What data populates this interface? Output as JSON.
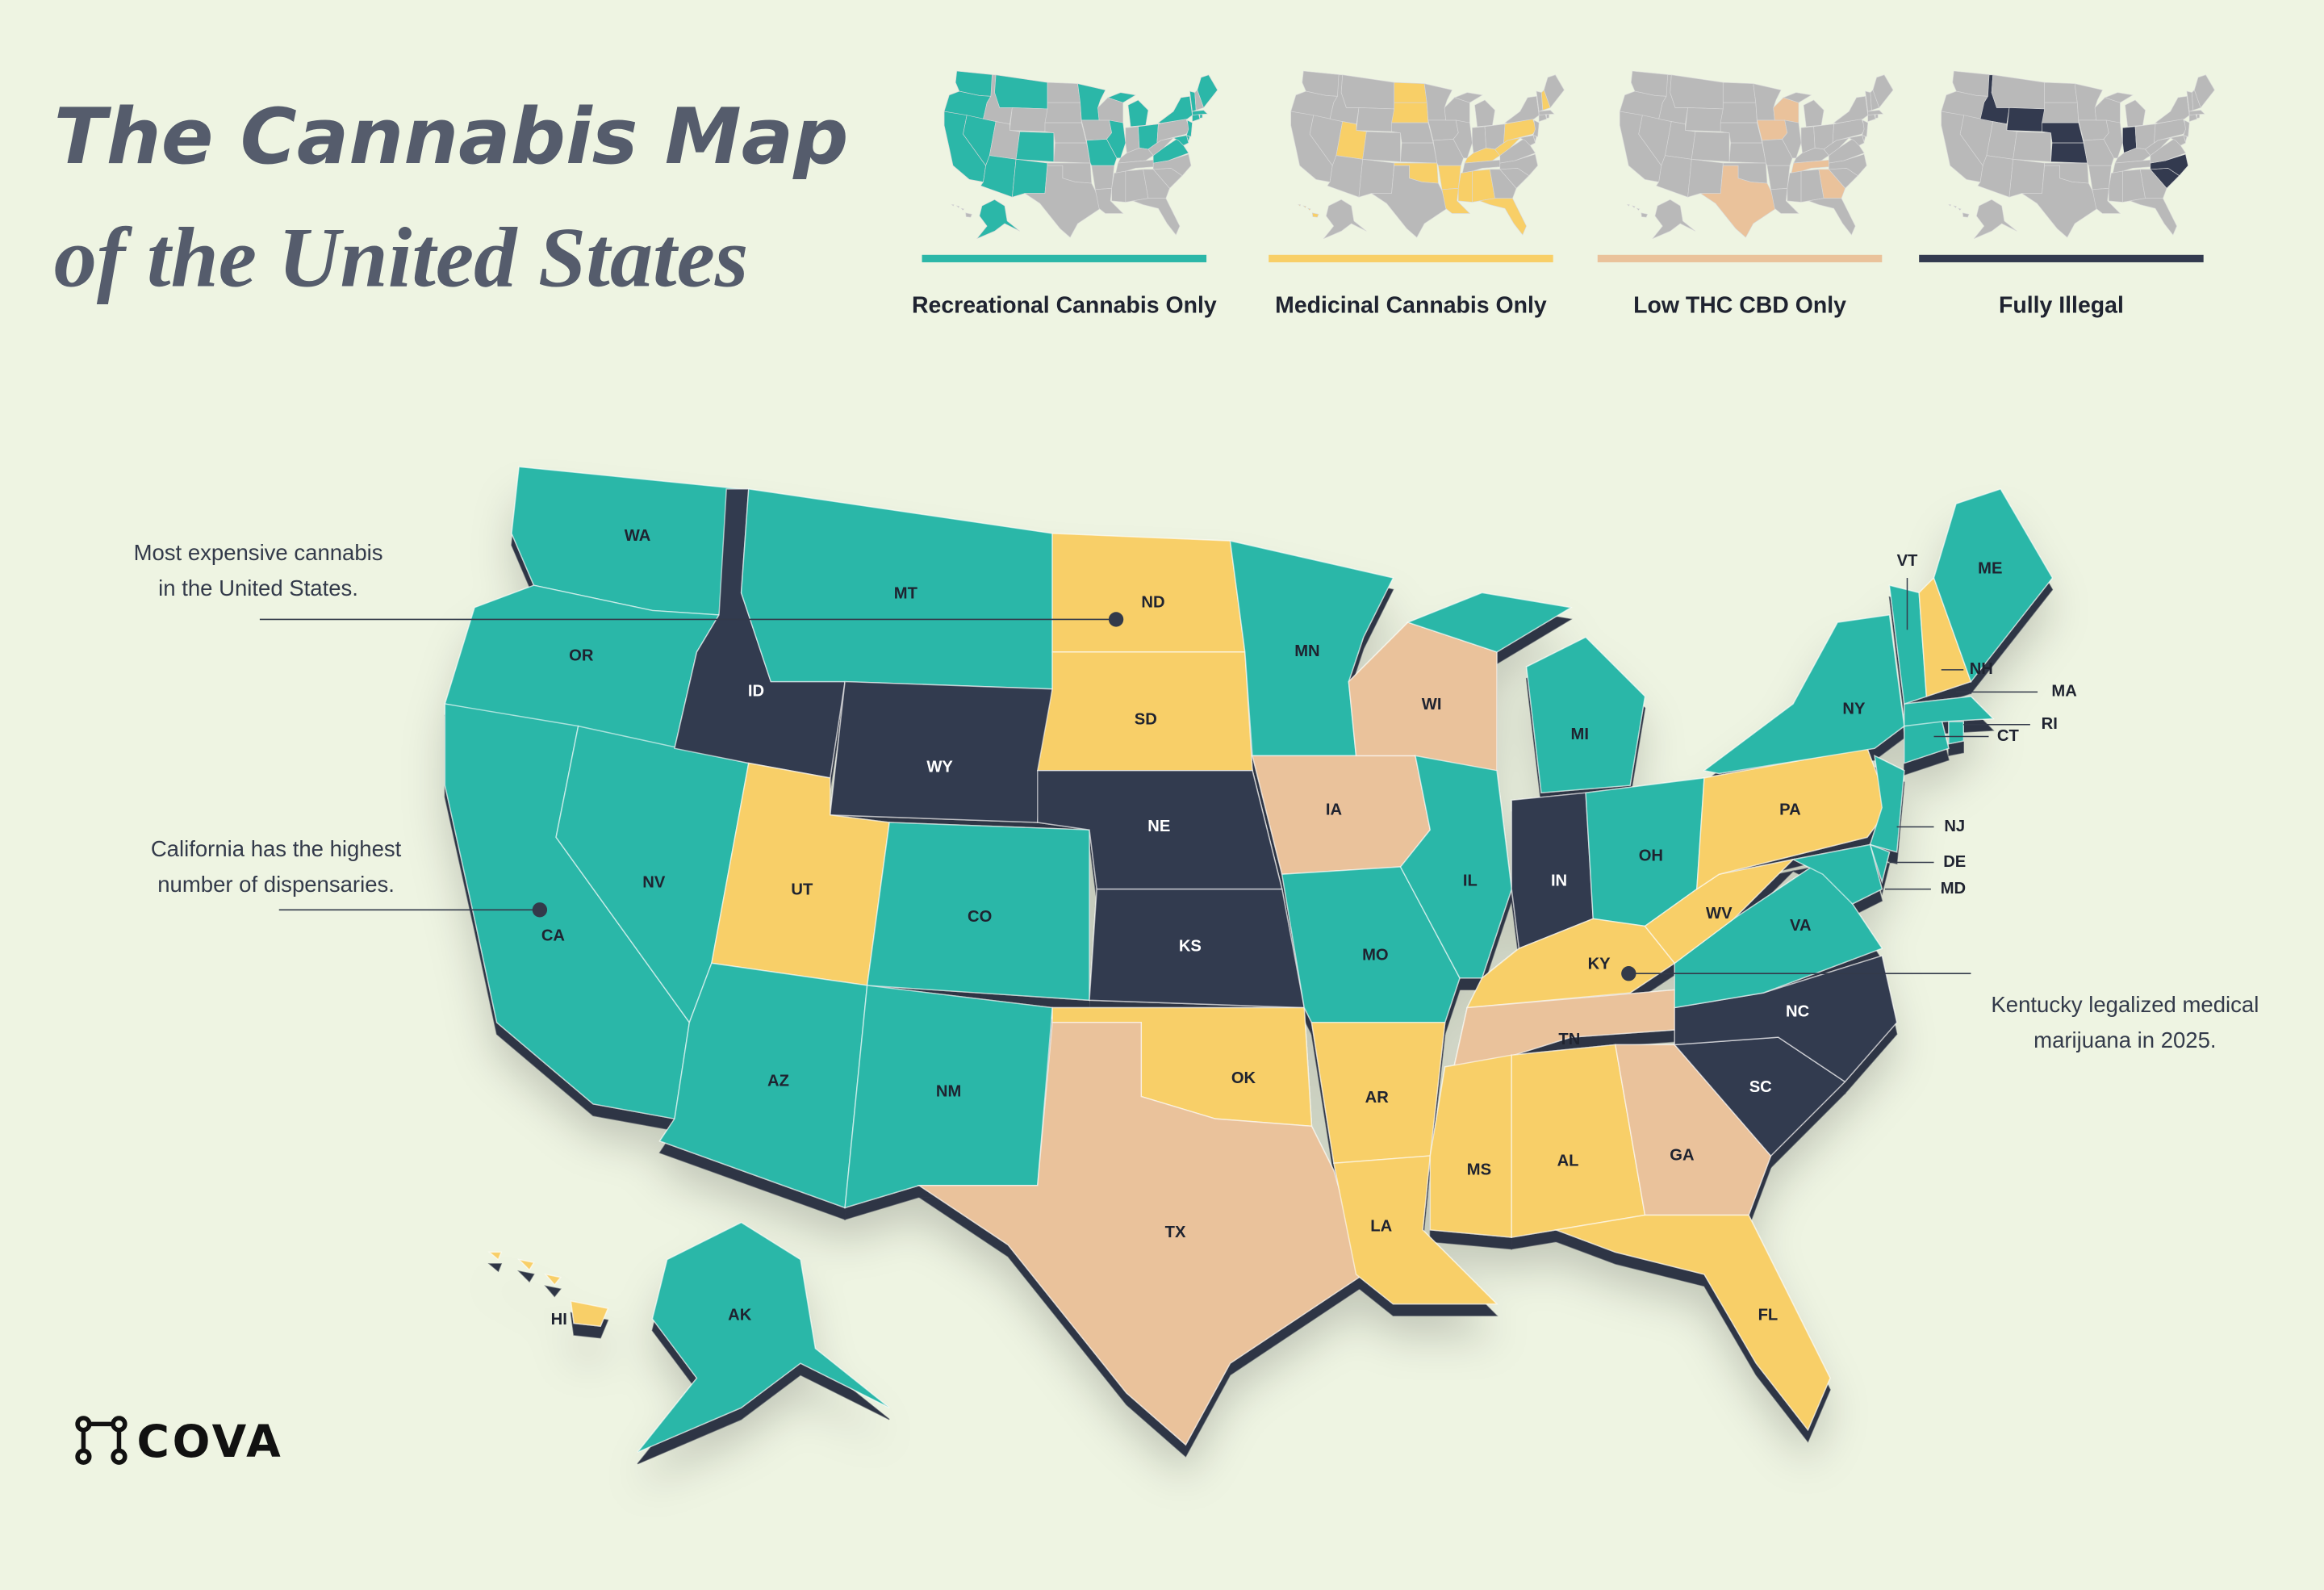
{
  "header": {
    "title_line1": "The Cannabis Map",
    "title_line2": "of the United States"
  },
  "legend": [
    {
      "label": "Recreational Cannabis Only",
      "color": "#2bb7a8"
    },
    {
      "label": "Medicinal Cannabis Only",
      "color": "#f8cf67"
    },
    {
      "label": "Low THC CBD Only",
      "color": "#eac29b"
    },
    {
      "label": "Fully Illegal",
      "color": "#333a4f"
    }
  ],
  "states": [
    {
      "abbr": "WA",
      "status": 0
    },
    {
      "abbr": "OR",
      "status": 0
    },
    {
      "abbr": "CA",
      "status": 0
    },
    {
      "abbr": "NV",
      "status": 0
    },
    {
      "abbr": "ID",
      "status": 3
    },
    {
      "abbr": "MT",
      "status": 0
    },
    {
      "abbr": "WY",
      "status": 3
    },
    {
      "abbr": "UT",
      "status": 1
    },
    {
      "abbr": "CO",
      "status": 0
    },
    {
      "abbr": "AZ",
      "status": 0
    },
    {
      "abbr": "NM",
      "status": 0
    },
    {
      "abbr": "ND",
      "status": 1
    },
    {
      "abbr": "SD",
      "status": 1
    },
    {
      "abbr": "NE",
      "status": 3
    },
    {
      "abbr": "KS",
      "status": 3
    },
    {
      "abbr": "OK",
      "status": 1
    },
    {
      "abbr": "TX",
      "status": 2
    },
    {
      "abbr": "MN",
      "status": 0
    },
    {
      "abbr": "IA",
      "status": 2
    },
    {
      "abbr": "MO",
      "status": 0
    },
    {
      "abbr": "AR",
      "status": 1
    },
    {
      "abbr": "LA",
      "status": 1
    },
    {
      "abbr": "WI",
      "status": 2
    },
    {
      "abbr": "IL",
      "status": 0
    },
    {
      "abbr": "MI",
      "status": 0
    },
    {
      "abbr": "IN",
      "status": 3
    },
    {
      "abbr": "OH",
      "status": 0
    },
    {
      "abbr": "KY",
      "status": 1
    },
    {
      "abbr": "TN",
      "status": 2
    },
    {
      "abbr": "MS",
      "status": 1
    },
    {
      "abbr": "AL",
      "status": 1
    },
    {
      "abbr": "GA",
      "status": 2
    },
    {
      "abbr": "FL",
      "status": 1
    },
    {
      "abbr": "SC",
      "status": 3
    },
    {
      "abbr": "NC",
      "status": 3
    },
    {
      "abbr": "VA",
      "status": 0
    },
    {
      "abbr": "WV",
      "status": 1
    },
    {
      "abbr": "PA",
      "status": 1
    },
    {
      "abbr": "NY",
      "status": 0
    },
    {
      "abbr": "NJ",
      "status": 0
    },
    {
      "abbr": "DE",
      "status": 0
    },
    {
      "abbr": "MD",
      "status": 0
    },
    {
      "abbr": "CT",
      "status": 0
    },
    {
      "abbr": "RI",
      "status": 0
    },
    {
      "abbr": "MA",
      "status": 0
    },
    {
      "abbr": "VT",
      "status": 0
    },
    {
      "abbr": "NH",
      "status": 1
    },
    {
      "abbr": "ME",
      "status": 0
    },
    {
      "abbr": "AK",
      "status": 0
    },
    {
      "abbr": "HI",
      "status": 1
    }
  ],
  "annotations": [
    {
      "lines": [
        "Most expensive cannabis",
        "in the United States."
      ]
    },
    {
      "lines": [
        "California has the highest",
        "number of dispensaries."
      ]
    },
    {
      "lines": [
        "Kentucky legalized medical",
        "marijuana in 2025."
      ]
    }
  ],
  "logo": {
    "text": "COVA"
  }
}
